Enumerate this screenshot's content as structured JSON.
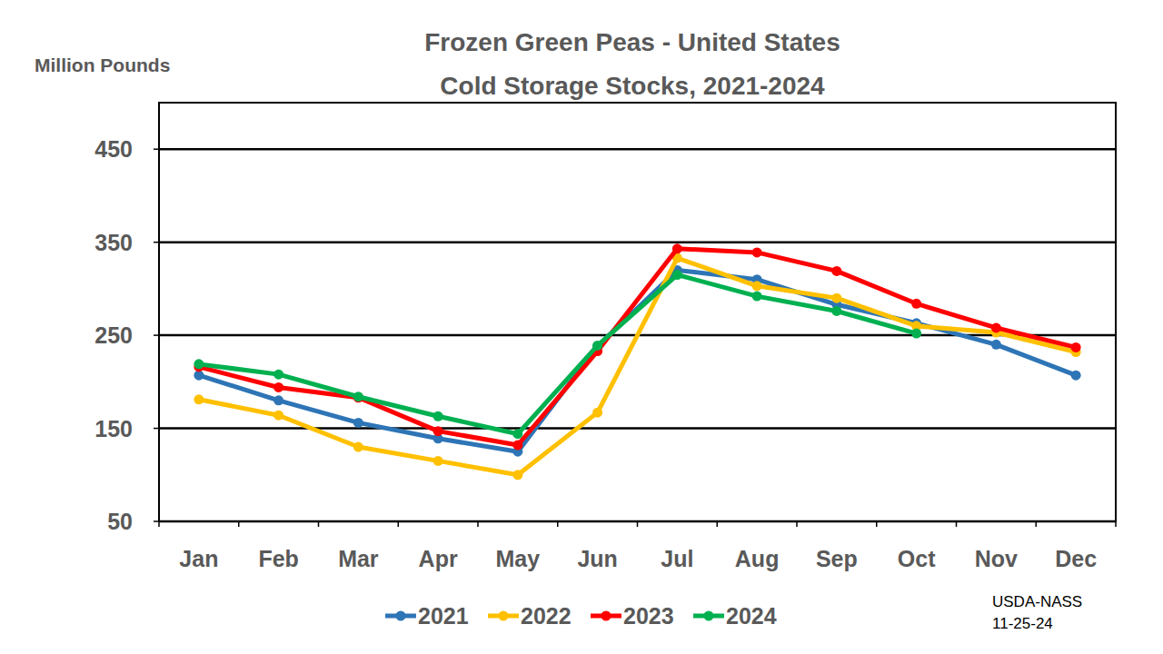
{
  "chart_data": {
    "type": "line",
    "title": "Frozen Green Peas - United States",
    "subtitle": "Cold Storage Stocks, 2021-2024",
    "y_label": "Million Pounds",
    "annotations": [
      "USDA-NASS",
      "11-25-24"
    ],
    "categories": [
      "Jan",
      "Feb",
      "Mar",
      "Apr",
      "May",
      "Jun",
      "Jul",
      "Aug",
      "Sep",
      "Oct",
      "Nov",
      "Dec"
    ],
    "series": [
      {
        "name": "2021",
        "color": "#2E75B6",
        "marker": "circle",
        "values": [
          207,
          180,
          156,
          139,
          125,
          238,
          320,
          310,
          283,
          263,
          240,
          207
        ]
      },
      {
        "name": "2022",
        "color": "#FFC000",
        "marker": "circle",
        "values": [
          181,
          164,
          130,
          115,
          100,
          167,
          333,
          303,
          290,
          260,
          253,
          232
        ]
      },
      {
        "name": "2023",
        "color": "#FF0000",
        "marker": "circle",
        "values": [
          216,
          194,
          183,
          147,
          132,
          233,
          343,
          339,
          319,
          284,
          258,
          237
        ]
      },
      {
        "name": "2024",
        "color": "#00B050",
        "marker": "circle",
        "values": [
          219,
          208,
          184,
          163,
          144,
          239,
          315,
          292,
          276,
          252,
          null,
          null
        ]
      }
    ],
    "ylim": [
      50,
      500
    ],
    "yticks": [
      50,
      150,
      250,
      350,
      450
    ],
    "grid": true,
    "legend": "bottom"
  }
}
